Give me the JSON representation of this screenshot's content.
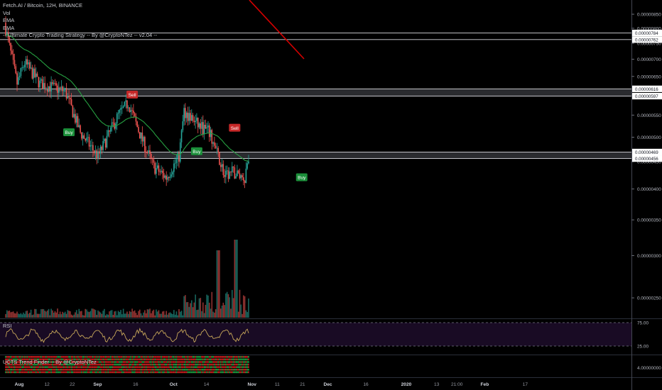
{
  "legend": {
    "symbol_line": "Fetch.AI / Bitcoin, 12H, BINANCE",
    "vol_label": "Vol",
    "ema1_label": "EMA",
    "ema2_label": "EMA",
    "strategy_label": "-- Ultimate Crypto Trading Strategy -- By @CryptoNTez -- v2.04 --"
  },
  "rsi_pane": {
    "title": "RSI",
    "levels": [
      "75.00",
      "25.00"
    ]
  },
  "trend_pane": {
    "title": "UCTS Trend Finder -- By @CryptoNTez",
    "axis_label": "4.00000000"
  },
  "colors": {
    "up": "#26a69a",
    "down": "#ef5350",
    "ema": "#26a041",
    "ema_long": "#d50000",
    "rsi": "#c8a85a"
  },
  "chart_data": {
    "type": "candlestick",
    "title": "Fetch.AI / Bitcoin, 12H, BINANCE",
    "price_axis": {
      "scale": "log",
      "ticks": [
        "0.00000850",
        "0.00000800",
        "0.00000750",
        "0.00000700",
        "0.00000650",
        "0.00000600",
        "0.00000550",
        "0.00000500",
        "0.00000450",
        "0.00000400",
        "0.00000350",
        "0.00000300",
        "0.00000250"
      ],
      "range": [
        2.1e-06,
        8.8e-06
      ]
    },
    "levels": [
      {
        "label": "0.00000784",
        "value": 7.84e-06
      },
      {
        "label": "0.00000762",
        "value": 7.62e-06
      },
      {
        "label": "0.00000616",
        "value": 6.16e-06
      },
      {
        "label": "0.00000597",
        "value": 5.97e-06
      },
      {
        "label": "0.00000469",
        "value": 4.69e-06
      },
      {
        "label": "0.00000456",
        "value": 4.56e-06
      }
    ],
    "time_axis": {
      "labels": [
        "Aug",
        "12",
        "22",
        "Sep",
        "16",
        "Oct",
        "14",
        "Nov",
        "11",
        "21",
        "Dec",
        "16",
        "2020",
        "13",
        "21:00",
        "Feb",
        "17"
      ],
      "bold": [
        "Aug",
        "Sep",
        "Oct",
        "Nov",
        "Dec",
        "2020",
        "Feb"
      ]
    },
    "signals": [
      {
        "label": "Buy",
        "day": 25,
        "price": 5.1e-06
      },
      {
        "label": "Sell",
        "day": 50,
        "price": 6e-06
      },
      {
        "label": "Buy",
        "day": 75.5,
        "price": 4.7e-06
      },
      {
        "label": "Sell",
        "day": 90.5,
        "price": 5.2e-06
      },
      {
        "label": "Buy",
        "day": 117,
        "price": 4.2e-06
      }
    ],
    "ohlc_anchors_date_price": [
      [
        "2019-08-01",
        8.2e-06
      ],
      [
        "2019-08-06",
        6.3e-06
      ],
      [
        "2019-08-09",
        6.9e-06
      ],
      [
        "2019-08-15",
        6.3e-06
      ],
      [
        "2019-08-25",
        6.1e-06
      ],
      [
        "2019-08-31",
        5.1e-06
      ],
      [
        "2019-09-07",
        4.6e-06
      ],
      [
        "2019-09-15",
        5.5e-06
      ],
      [
        "2019-09-19",
        5.8e-06
      ],
      [
        "2019-09-24",
        5e-06
      ],
      [
        "2019-09-29",
        4.4e-06
      ],
      [
        "2019-10-04",
        4.2e-06
      ],
      [
        "2019-10-09",
        4.6e-06
      ],
      [
        "2019-10-11",
        5.6e-06
      ],
      [
        "2019-10-16",
        5.3e-06
      ],
      [
        "2019-10-21",
        5.1e-06
      ],
      [
        "2019-10-26",
        4.4e-06
      ],
      [
        "2019-10-27",
        4.2e-06
      ],
      [
        "2019-10-30",
        4.3e-06
      ],
      [
        "2019-11-04",
        4.2e-06
      ],
      [
        "2019-11-05",
        4.5e-06
      ]
    ],
    "rsi_range": [
      0,
      100
    ]
  }
}
